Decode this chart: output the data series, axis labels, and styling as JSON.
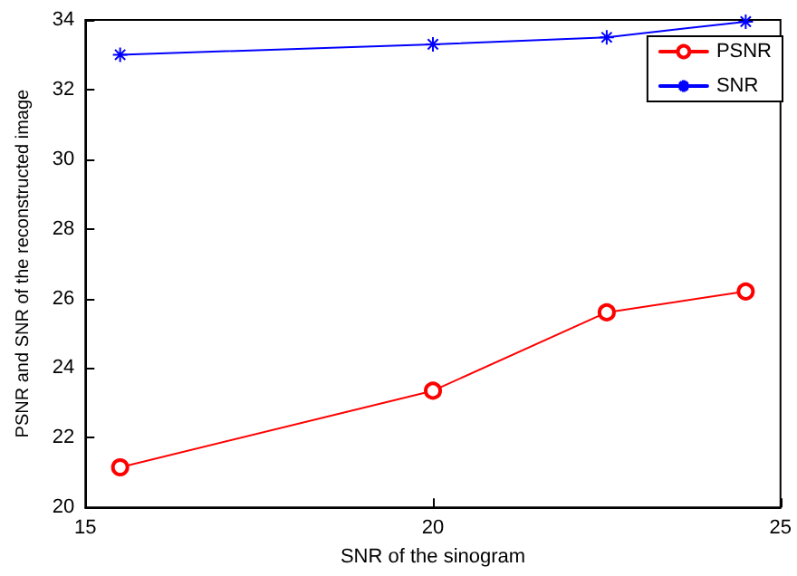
{
  "chart_data": {
    "type": "line",
    "xlabel": "SNR of the sinogram",
    "ylabel": "PSNR and SNR of the reconstructed image",
    "x": [
      15.5,
      20,
      22.5,
      24.5
    ],
    "series": [
      {
        "name": "PSNR",
        "color": "#ff0000",
        "marker": "circle",
        "values": [
          21.15,
          23.35,
          25.6,
          26.2
        ]
      },
      {
        "name": "SNR",
        "color": "#0000ff",
        "marker": "cross",
        "values": [
          33.0,
          33.3,
          33.5,
          33.95
        ]
      }
    ],
    "xlim": [
      15,
      25
    ],
    "xticks": [
      15,
      20,
      25
    ],
    "ylim": [
      20,
      34
    ],
    "yticks": [
      20,
      22,
      24,
      26,
      28,
      30,
      32,
      34
    ],
    "grid": false,
    "legend": "top right",
    "line_style": "solid"
  }
}
